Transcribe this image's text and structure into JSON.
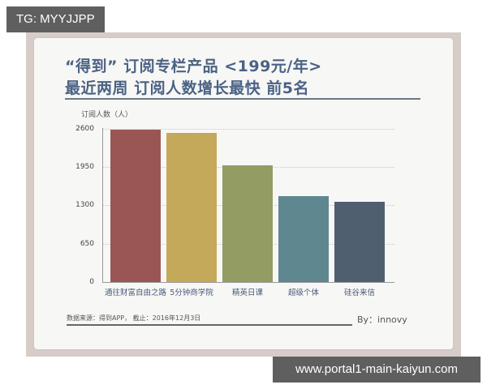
{
  "watermarks": {
    "top_left": "TG: MYYJJPP",
    "bottom_right": "www.portal1-main-kaiyun.com"
  },
  "card": {
    "title_line1": "“得到” 订阅专栏产品 <199元/年>",
    "title_line2": "最近两周 订阅人数增长最快 前5名",
    "source": "数据来源：得到APP，  截止：2016年12月3日",
    "byline": "By：innovy"
  },
  "chart_data": {
    "type": "bar",
    "title": "“得到” 订阅专栏产品 <199元/年> 最近两周 订阅人数增长最快 前5名",
    "xlabel": "",
    "ylabel": "订阅人数（人）",
    "categories": [
      "通往财富自由之路",
      "5分钟商学院",
      "精英日课",
      "超级个体",
      "硅谷来信"
    ],
    "values": [
      2585,
      2530,
      1980,
      1460,
      1360
    ],
    "colors": [
      "#9a5654",
      "#c5a95a",
      "#939c63",
      "#5e8790",
      "#4f5f70"
    ],
    "ylim": [
      0,
      2600
    ],
    "yticks": [
      "2600",
      "1950",
      "1300",
      "650",
      "0"
    ],
    "grid": true,
    "legend": "none"
  }
}
